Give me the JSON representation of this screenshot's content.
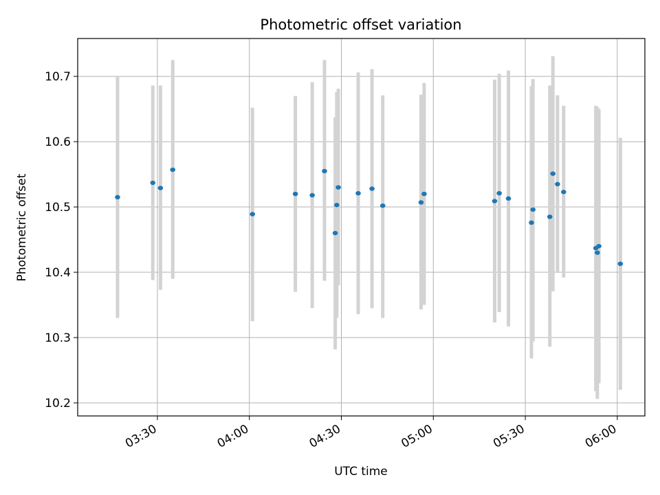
{
  "chart_data": {
    "type": "scatter",
    "title": "Photometric offset variation",
    "xlabel": "UTC time",
    "ylabel": "Photometric offset",
    "grid": true,
    "x_domain": [
      "03:04",
      "06:09"
    ],
    "ylim": [
      10.18,
      10.758
    ],
    "x_ticks": [
      "03:30",
      "04:00",
      "04:30",
      "05:00",
      "05:30",
      "06:00"
    ],
    "y_ticks": [
      "10.2",
      "10.3",
      "10.4",
      "10.5",
      "10.6",
      "10.7"
    ],
    "marker_color": "#1f77b4",
    "errorbar_color": "#d3d3d3",
    "points": [
      {
        "x": "03:17:00",
        "y": 10.515,
        "low": 10.33,
        "high": 10.7
      },
      {
        "x": "03:28:30",
        "y": 10.537,
        "low": 10.388,
        "high": 10.686
      },
      {
        "x": "03:31:00",
        "y": 10.529,
        "low": 10.373,
        "high": 10.686
      },
      {
        "x": "03:35:00",
        "y": 10.557,
        "low": 10.39,
        "high": 10.725
      },
      {
        "x": "04:01:00",
        "y": 10.489,
        "low": 10.325,
        "high": 10.652
      },
      {
        "x": "04:15:00",
        "y": 10.52,
        "low": 10.37,
        "high": 10.67
      },
      {
        "x": "04:20:30",
        "y": 10.518,
        "low": 10.345,
        "high": 10.691
      },
      {
        "x": "04:24:30",
        "y": 10.555,
        "low": 10.387,
        "high": 10.725
      },
      {
        "x": "04:28:00",
        "y": 10.46,
        "low": 10.282,
        "high": 10.637
      },
      {
        "x": "04:28:30",
        "y": 10.503,
        "low": 10.33,
        "high": 10.676
      },
      {
        "x": "04:29:00",
        "y": 10.53,
        "low": 10.38,
        "high": 10.681
      },
      {
        "x": "04:35:30",
        "y": 10.521,
        "low": 10.336,
        "high": 10.706
      },
      {
        "x": "04:40:00",
        "y": 10.528,
        "low": 10.345,
        "high": 10.711
      },
      {
        "x": "04:43:30",
        "y": 10.502,
        "low": 10.33,
        "high": 10.671
      },
      {
        "x": "04:56:00",
        "y": 10.507,
        "low": 10.343,
        "high": 10.672
      },
      {
        "x": "04:57:00",
        "y": 10.52,
        "low": 10.35,
        "high": 10.69
      },
      {
        "x": "05:20:00",
        "y": 10.509,
        "low": 10.323,
        "high": 10.695
      },
      {
        "x": "05:21:30",
        "y": 10.521,
        "low": 10.339,
        "high": 10.704
      },
      {
        "x": "05:24:30",
        "y": 10.513,
        "low": 10.317,
        "high": 10.709
      },
      {
        "x": "05:32:00",
        "y": 10.476,
        "low": 10.268,
        "high": 10.685
      },
      {
        "x": "05:32:30",
        "y": 10.496,
        "low": 10.294,
        "high": 10.696
      },
      {
        "x": "05:38:00",
        "y": 10.485,
        "low": 10.286,
        "high": 10.686
      },
      {
        "x": "05:39:00",
        "y": 10.551,
        "low": 10.371,
        "high": 10.731
      },
      {
        "x": "05:40:30",
        "y": 10.535,
        "low": 10.399,
        "high": 10.671
      },
      {
        "x": "05:42:30",
        "y": 10.523,
        "low": 10.392,
        "high": 10.655
      },
      {
        "x": "05:53:00",
        "y": 10.437,
        "low": 10.218,
        "high": 10.655
      },
      {
        "x": "05:53:30",
        "y": 10.43,
        "low": 10.206,
        "high": 10.653
      },
      {
        "x": "05:54:00",
        "y": 10.44,
        "low": 10.23,
        "high": 10.65
      },
      {
        "x": "06:01:00",
        "y": 10.413,
        "low": 10.22,
        "high": 10.606
      }
    ]
  }
}
